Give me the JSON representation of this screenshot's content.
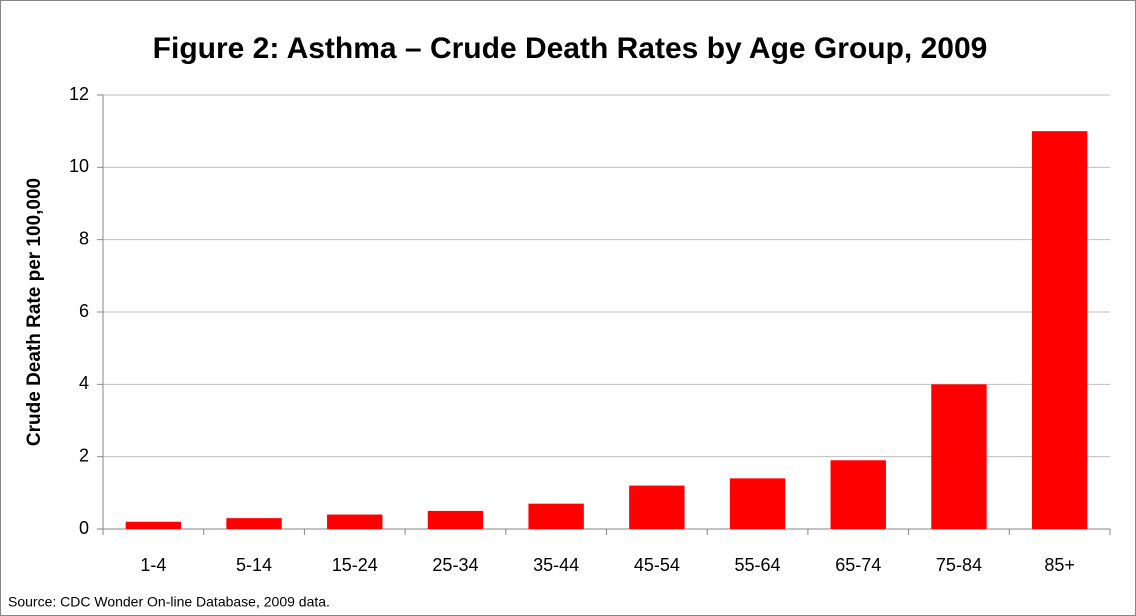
{
  "chart_data": {
    "type": "bar",
    "title": "Figure 2: Asthma – Crude Death Rates by Age Group, 2009",
    "y_label": "Crude Death Rate per 100,000",
    "source": "Source: CDC Wonder On-line Database, 2009 data.",
    "categories": [
      "1-4",
      "5-14",
      "15-24",
      "25-34",
      "35-44",
      "45-54",
      "55-64",
      "65-74",
      "75-84",
      "85+"
    ],
    "values": [
      0.2,
      0.3,
      0.4,
      0.5,
      0.7,
      1.2,
      1.4,
      1.9,
      4.0,
      11.0
    ],
    "color": "#ff0000",
    "ylim": [
      0,
      12
    ],
    "yticks": [
      0,
      2,
      4,
      6,
      8,
      10,
      12
    ],
    "grid": true
  }
}
